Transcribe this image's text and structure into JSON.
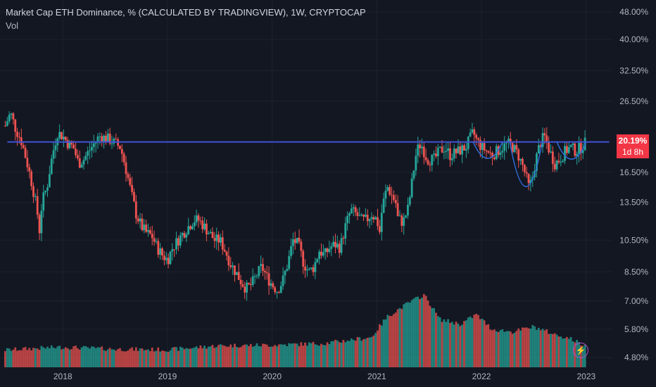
{
  "header": {
    "title": "Market Cap ETH Dominance, % (CALCULATED BY TRADINGVIEW), 1W, CRYPTOCAP",
    "volume_label": "Vol"
  },
  "price_badge": {
    "value": "20.19%",
    "countdown": "1d 8h"
  },
  "icons": {
    "bolt": "lightning-bolt-icon"
  },
  "colors": {
    "up": "#26a69a",
    "down": "#ef5350",
    "level_line": "#3f51d6",
    "pattern": "#2f6bd9",
    "badge": "#f23645"
  },
  "chart_data": {
    "type": "candlestick",
    "title": "Market Cap ETH Dominance, % (CALCULATED BY TRADINGVIEW), 1W, CRYPTOCAP",
    "y_scale": "log",
    "ylim": [
      4.5,
      52
    ],
    "y_ticks": [
      "48.00%",
      "40.00%",
      "32.50%",
      "26.50%",
      "20.19%",
      "16.50%",
      "13.50%",
      "10.50%",
      "8.50%",
      "7.00%",
      "5.80%",
      "4.80%"
    ],
    "x_ticks": [
      "2018",
      "2019",
      "2020",
      "2021",
      "2022",
      "2023"
    ],
    "x_range": [
      2017.4,
      2023.25
    ],
    "close_path": [
      [
        2017.45,
        22.5
      ],
      [
        2017.5,
        24.5
      ],
      [
        2017.55,
        22.0
      ],
      [
        2017.6,
        20.5
      ],
      [
        2017.65,
        18.0
      ],
      [
        2017.7,
        15.5
      ],
      [
        2017.75,
        13.0
      ],
      [
        2017.78,
        11.0
      ],
      [
        2017.8,
        13.5
      ],
      [
        2017.85,
        15.0
      ],
      [
        2017.9,
        18.5
      ],
      [
        2017.95,
        21.5
      ],
      [
        2018.0,
        21.0
      ],
      [
        2018.05,
        20.0
      ],
      [
        2018.1,
        19.5
      ],
      [
        2018.15,
        17.5
      ],
      [
        2018.2,
        18.0
      ],
      [
        2018.25,
        19.0
      ],
      [
        2018.3,
        20.0
      ],
      [
        2018.35,
        21.0
      ],
      [
        2018.45,
        20.5
      ],
      [
        2018.5,
        20.0
      ],
      [
        2018.55,
        19.5
      ],
      [
        2018.6,
        17.0
      ],
      [
        2018.65,
        14.5
      ],
      [
        2018.7,
        12.5
      ],
      [
        2018.75,
        11.5
      ],
      [
        2018.8,
        11.0
      ],
      [
        2018.85,
        10.8
      ],
      [
        2018.9,
        10.0
      ],
      [
        2018.95,
        9.5
      ],
      [
        2019.0,
        9.2
      ],
      [
        2019.05,
        10.0
      ],
      [
        2019.1,
        10.5
      ],
      [
        2019.15,
        11.0
      ],
      [
        2019.2,
        11.5
      ],
      [
        2019.25,
        12.0
      ],
      [
        2019.3,
        12.0
      ],
      [
        2019.35,
        11.5
      ],
      [
        2019.4,
        11.0
      ],
      [
        2019.45,
        10.5
      ],
      [
        2019.5,
        10.5
      ],
      [
        2019.55,
        9.8
      ],
      [
        2019.6,
        9.0
      ],
      [
        2019.65,
        8.5
      ],
      [
        2019.7,
        8.0
      ],
      [
        2019.75,
        7.6
      ],
      [
        2019.8,
        7.8
      ],
      [
        2019.85,
        8.3
      ],
      [
        2019.9,
        8.8
      ],
      [
        2019.95,
        8.2
      ],
      [
        2020.0,
        7.8
      ],
      [
        2020.05,
        7.5
      ],
      [
        2020.1,
        8.0
      ],
      [
        2020.15,
        9.0
      ],
      [
        2020.2,
        10.5
      ],
      [
        2020.25,
        10.2
      ],
      [
        2020.3,
        9.0
      ],
      [
        2020.35,
        8.5
      ],
      [
        2020.4,
        8.8
      ],
      [
        2020.45,
        9.8
      ],
      [
        2020.5,
        9.5
      ],
      [
        2020.55,
        10.0
      ],
      [
        2020.6,
        10.2
      ],
      [
        2020.65,
        10.0
      ],
      [
        2020.7,
        11.5
      ],
      [
        2020.75,
        12.8
      ],
      [
        2020.8,
        12.5
      ],
      [
        2020.85,
        12.0
      ],
      [
        2020.9,
        12.0
      ],
      [
        2020.95,
        12.5
      ],
      [
        2021.0,
        12.0
      ],
      [
        2021.03,
        11.0
      ],
      [
        2021.05,
        13.0
      ],
      [
        2021.1,
        15.0
      ],
      [
        2021.15,
        14.0
      ],
      [
        2021.18,
        13.5
      ],
      [
        2021.2,
        12.2
      ],
      [
        2021.25,
        11.8
      ],
      [
        2021.3,
        13.0
      ],
      [
        2021.33,
        15.0
      ],
      [
        2021.38,
        19.0
      ],
      [
        2021.42,
        20.0
      ],
      [
        2021.48,
        18.0
      ],
      [
        2021.55,
        18.0
      ],
      [
        2021.6,
        19.0
      ],
      [
        2021.65,
        19.5
      ],
      [
        2021.7,
        18.5
      ],
      [
        2021.78,
        19.0
      ],
      [
        2021.85,
        19.5
      ],
      [
        2021.92,
        21.5
      ],
      [
        2021.95,
        20.5
      ],
      [
        2022.0,
        19.5
      ],
      [
        2022.05,
        19.0
      ],
      [
        2022.1,
        18.5
      ],
      [
        2022.15,
        19.0
      ],
      [
        2022.2,
        19.5
      ],
      [
        2022.25,
        20.0
      ],
      [
        2022.3,
        19.5
      ],
      [
        2022.35,
        18.5
      ],
      [
        2022.4,
        17.0
      ],
      [
        2022.45,
        15.0
      ],
      [
        2022.48,
        15.5
      ],
      [
        2022.52,
        18.0
      ],
      [
        2022.56,
        20.0
      ],
      [
        2022.6,
        21.0
      ],
      [
        2022.65,
        19.0
      ],
      [
        2022.7,
        17.5
      ],
      [
        2022.75,
        18.0
      ],
      [
        2022.8,
        19.0
      ],
      [
        2022.85,
        19.5
      ],
      [
        2022.9,
        19.0
      ],
      [
        2022.95,
        19.5
      ],
      [
        2023.0,
        20.19
      ]
    ],
    "volume_path": [
      [
        2017.45,
        5.05
      ],
      [
        2017.7,
        5.1
      ],
      [
        2018.0,
        5.15
      ],
      [
        2018.5,
        5.08
      ],
      [
        2019.0,
        5.06
      ],
      [
        2019.5,
        5.2
      ],
      [
        2020.0,
        5.22
      ],
      [
        2020.5,
        5.28
      ],
      [
        2020.95,
        5.5
      ],
      [
        2021.1,
        6.3
      ],
      [
        2021.3,
        6.9
      ],
      [
        2021.45,
        7.3
      ],
      [
        2021.6,
        6.2
      ],
      [
        2021.8,
        6.0
      ],
      [
        2021.95,
        6.4
      ],
      [
        2022.1,
        5.8
      ],
      [
        2022.3,
        5.7
      ],
      [
        2022.5,
        5.9
      ],
      [
        2022.7,
        5.6
      ],
      [
        2022.85,
        5.45
      ],
      [
        2023.0,
        5.15
      ]
    ],
    "horizontal_level": 20.19,
    "level_x_range": [
      2017.47,
      2023.22
    ],
    "pattern_arcs": [
      {
        "from": [
          2021.92,
          20.19
        ],
        "bottom": 18.1,
        "to": [
          2022.2,
          20.19
        ]
      },
      {
        "from": [
          2022.27,
          20.19
        ],
        "bottom": 15.0,
        "to": [
          2022.58,
          20.19
        ]
      },
      {
        "from": [
          2022.72,
          20.19
        ],
        "bottom": 18.0,
        "to": [
          2023.0,
          20.19
        ]
      }
    ]
  }
}
